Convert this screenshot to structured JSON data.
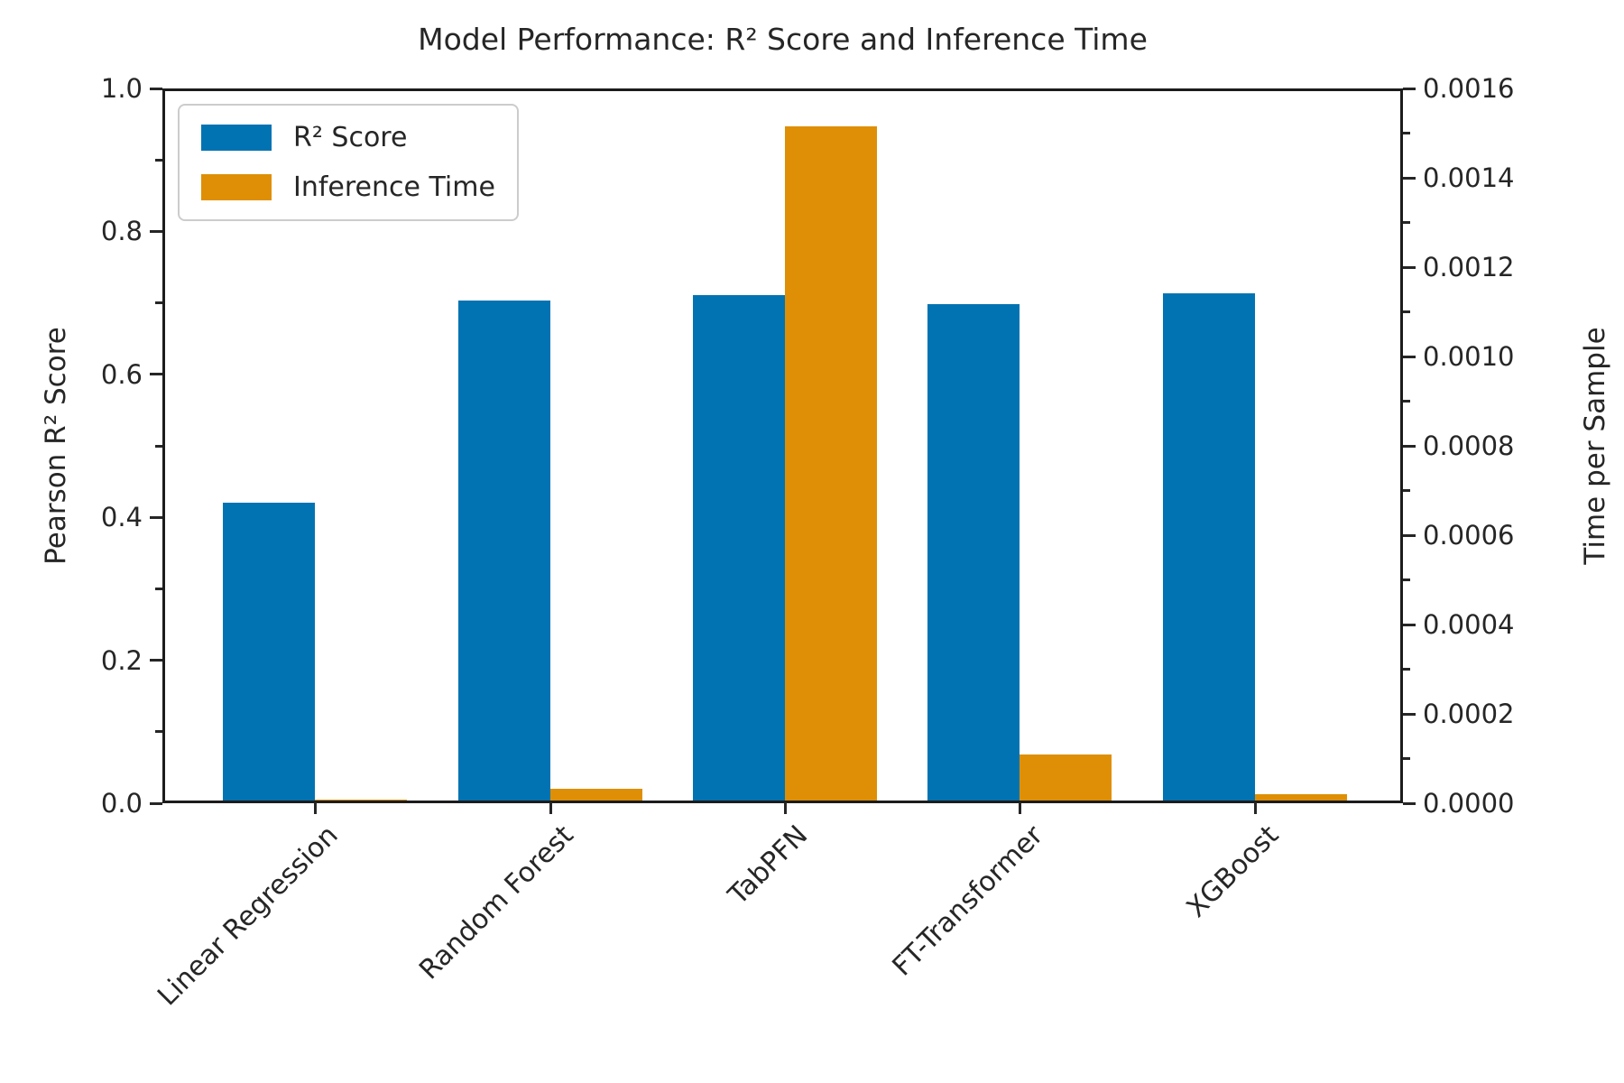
{
  "title": "Model Performance: R² Score and Inference Time",
  "left_axis": {
    "label": "Pearson R² Score",
    "tick_labels": [
      "0.0",
      "0.2",
      "0.4",
      "0.6",
      "0.8",
      "1.0"
    ],
    "max": 1.0
  },
  "right_axis": {
    "label": "Time per Sample",
    "tick_labels": [
      "0.0000",
      "0.0002",
      "0.0004",
      "0.0006",
      "0.0008",
      "0.0010",
      "0.0012",
      "0.0014",
      "0.0016"
    ],
    "max": 0.0016
  },
  "legend": {
    "items": [
      {
        "label": "R² Score",
        "color": "#0173b2"
      },
      {
        "label": "Inference Time",
        "color": "#de8f05"
      }
    ]
  },
  "chart_data": {
    "type": "bar",
    "title": "Model Performance: R² Score and Inference Time",
    "categories": [
      "Linear Regression",
      "Random Forest",
      "TabPFN",
      "FT-Transformer",
      "XGBoost"
    ],
    "series": [
      {
        "name": "R² Score",
        "axis": "left",
        "color": "#0173b2",
        "values": [
          0.42,
          0.705,
          0.713,
          0.7,
          0.715
        ]
      },
      {
        "name": "Inference Time",
        "axis": "right",
        "color": "#de8f05",
        "values": [
          2e-06,
          2.6e-05,
          0.00152,
          0.000103,
          1.4e-05
        ]
      }
    ],
    "ylabel_left": "Pearson R² Score",
    "ylabel_right": "Time per Sample",
    "ylim_left": [
      0.0,
      1.0
    ],
    "ylim_right": [
      0.0,
      0.0016
    ],
    "left_major_tick_step": 0.2,
    "left_minor_tick_step": 0.1,
    "right_major_tick_step": 0.0002,
    "right_minor_tick_step": 0.0001,
    "grid": false,
    "legend_position": "upper left",
    "x_tick_rotation_deg": 45
  }
}
